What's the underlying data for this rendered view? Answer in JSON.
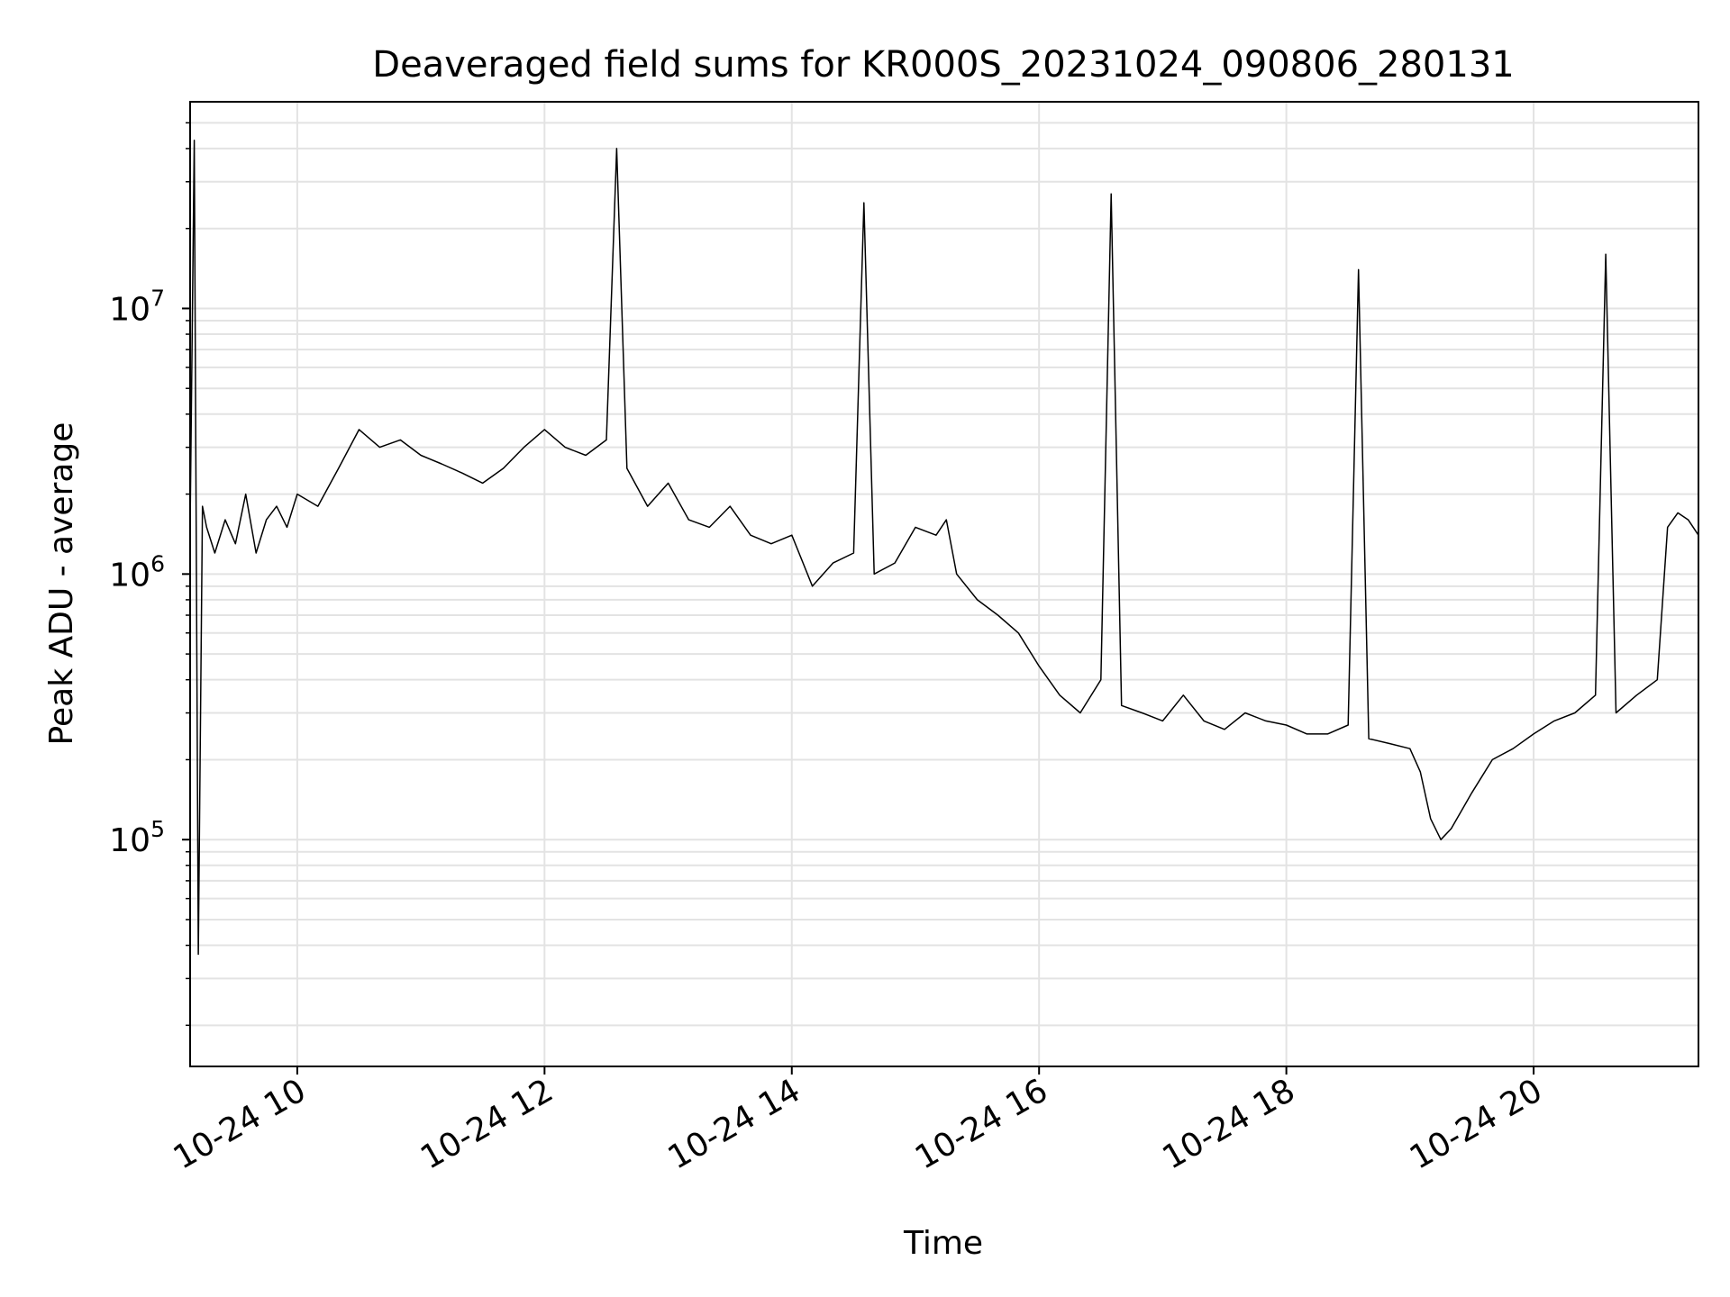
{
  "chart_data": {
    "type": "line",
    "title": "Deaveraged field sums for KR000S_20231024_090806_280131",
    "xlabel": "Time",
    "ylabel": "Peak ADU - average",
    "x_scale": "time",
    "y_scale": "log",
    "xlim": [
      "2023-10-24 09:08",
      "2023-10-24 21:20"
    ],
    "ylim": [
      14000,
      60000000
    ],
    "grid": true,
    "grid_minor_y": true,
    "x_ticks": [
      {
        "value": "2023-10-24 10:00",
        "label": "10-24 10"
      },
      {
        "value": "2023-10-24 12:00",
        "label": "10-24 12"
      },
      {
        "value": "2023-10-24 14:00",
        "label": "10-24 14"
      },
      {
        "value": "2023-10-24 16:00",
        "label": "10-24 16"
      },
      {
        "value": "2023-10-24 18:00",
        "label": "10-24 18"
      },
      {
        "value": "2023-10-24 20:00",
        "label": "10-24 20"
      }
    ],
    "y_ticks": [
      {
        "value": 100000,
        "base": "10",
        "exp": "5"
      },
      {
        "value": 1000000,
        "base": "10",
        "exp": "6"
      },
      {
        "value": 10000000,
        "base": "10",
        "exp": "7"
      }
    ],
    "series": [
      {
        "color": "#000000",
        "x": [
          "2023-10-24 09:08",
          "2023-10-24 09:10",
          "2023-10-24 09:12",
          "2023-10-24 09:14",
          "2023-10-24 09:16",
          "2023-10-24 09:20",
          "2023-10-24 09:25",
          "2023-10-24 09:30",
          "2023-10-24 09:35",
          "2023-10-24 09:40",
          "2023-10-24 09:45",
          "2023-10-24 09:50",
          "2023-10-24 09:55",
          "2023-10-24 10:00",
          "2023-10-24 10:10",
          "2023-10-24 10:20",
          "2023-10-24 10:30",
          "2023-10-24 10:40",
          "2023-10-24 10:50",
          "2023-10-24 11:00",
          "2023-10-24 11:10",
          "2023-10-24 11:20",
          "2023-10-24 11:30",
          "2023-10-24 11:40",
          "2023-10-24 11:50",
          "2023-10-24 12:00",
          "2023-10-24 12:10",
          "2023-10-24 12:20",
          "2023-10-24 12:30",
          "2023-10-24 12:35",
          "2023-10-24 12:40",
          "2023-10-24 12:50",
          "2023-10-24 13:00",
          "2023-10-24 13:10",
          "2023-10-24 13:20",
          "2023-10-24 13:30",
          "2023-10-24 13:40",
          "2023-10-24 13:50",
          "2023-10-24 14:00",
          "2023-10-24 14:10",
          "2023-10-24 14:20",
          "2023-10-24 14:30",
          "2023-10-24 14:35",
          "2023-10-24 14:40",
          "2023-10-24 14:50",
          "2023-10-24 15:00",
          "2023-10-24 15:10",
          "2023-10-24 15:15",
          "2023-10-24 15:20",
          "2023-10-24 15:30",
          "2023-10-24 15:40",
          "2023-10-24 15:50",
          "2023-10-24 16:00",
          "2023-10-24 16:10",
          "2023-10-24 16:20",
          "2023-10-24 16:30",
          "2023-10-24 16:35",
          "2023-10-24 16:40",
          "2023-10-24 16:50",
          "2023-10-24 17:00",
          "2023-10-24 17:10",
          "2023-10-24 17:20",
          "2023-10-24 17:30",
          "2023-10-24 17:40",
          "2023-10-24 17:50",
          "2023-10-24 18:00",
          "2023-10-24 18:10",
          "2023-10-24 18:20",
          "2023-10-24 18:30",
          "2023-10-24 18:35",
          "2023-10-24 18:40",
          "2023-10-24 18:50",
          "2023-10-24 19:00",
          "2023-10-24 19:05",
          "2023-10-24 19:10",
          "2023-10-24 19:15",
          "2023-10-24 19:20",
          "2023-10-24 19:30",
          "2023-10-24 19:40",
          "2023-10-24 19:50",
          "2023-10-24 20:00",
          "2023-10-24 20:10",
          "2023-10-24 20:20",
          "2023-10-24 20:30",
          "2023-10-24 20:35",
          "2023-10-24 20:40",
          "2023-10-24 20:50",
          "2023-10-24 21:00",
          "2023-10-24 21:05",
          "2023-10-24 21:10",
          "2023-10-24 21:15",
          "2023-10-24 21:20"
        ],
        "y": [
          1500000,
          43000000,
          37000,
          1800000,
          1500000,
          1200000,
          1600000,
          1300000,
          2000000,
          1200000,
          1600000,
          1800000,
          1500000,
          2000000,
          1800000,
          2500000,
          3500000,
          3000000,
          3200000,
          2800000,
          2600000,
          2400000,
          2200000,
          2500000,
          3000000,
          3500000,
          3000000,
          2800000,
          3200000,
          40000000,
          2500000,
          1800000,
          2200000,
          1600000,
          1500000,
          1800000,
          1400000,
          1300000,
          1400000,
          900000,
          1100000,
          1200000,
          25000000,
          1000000,
          1100000,
          1500000,
          1400000,
          1600000,
          1000000,
          800000,
          700000,
          600000,
          450000,
          350000,
          300000,
          400000,
          27000000,
          320000,
          300000,
          280000,
          350000,
          280000,
          260000,
          300000,
          280000,
          270000,
          250000,
          250000,
          270000,
          14000000,
          240000,
          230000,
          220000,
          180000,
          120000,
          100000,
          110000,
          150000,
          200000,
          220000,
          250000,
          280000,
          300000,
          350000,
          16000000,
          300000,
          350000,
          400000,
          1500000,
          1700000,
          1600000,
          1400000
        ]
      }
    ]
  }
}
